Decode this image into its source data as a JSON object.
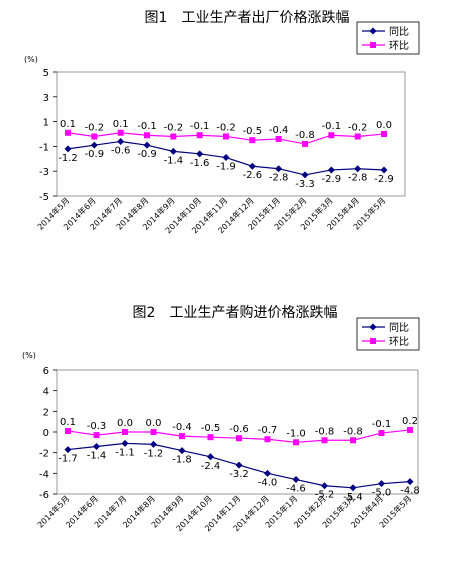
{
  "chart_data": [
    {
      "type": "line",
      "title": "图1　工业生产者出厂价格涨跌幅",
      "unit_label": "(%)",
      "categories": [
        "2014年5月",
        "2014年6月",
        "2014年7月",
        "2014年8月",
        "2014年9月",
        "2014年10月",
        "2014年11月",
        "2014年12月",
        "2015年1月",
        "2015年2月",
        "2015年3月",
        "2015年4月",
        "2015年5月"
      ],
      "ylim": [
        -5,
        5
      ],
      "yticks": [
        5,
        3,
        1,
        -1,
        -3,
        -5
      ],
      "series": [
        {
          "name": "同比",
          "color": "#000080",
          "marker": "diamond",
          "values": [
            -1.2,
            -0.9,
            -0.6,
            -0.9,
            -1.4,
            -1.6,
            -1.9,
            -2.6,
            -2.8,
            -3.3,
            -2.9,
            -2.8,
            -2.9
          ],
          "labels": [
            "-1.2",
            "-0.9",
            "-0.6",
            "-0.9",
            "-1.4",
            "-1.6",
            "-1.9",
            "-2.6",
            "-2.8",
            "-3.3",
            "-2.9",
            "-2.8",
            "-2.9"
          ]
        },
        {
          "name": "环比",
          "color": "#ff00ff",
          "marker": "square",
          "values": [
            0.1,
            -0.2,
            0.1,
            -0.1,
            -0.2,
            -0.1,
            -0.2,
            -0.5,
            -0.4,
            -0.8,
            -0.1,
            -0.2,
            0.0
          ],
          "labels": [
            "0.1",
            "-0.2",
            "0.1",
            "-0.1",
            "-0.2",
            "-0.1",
            "-0.2",
            "-0.5",
            "-0.4",
            "-0.8",
            "-0.1",
            "-0.2",
            "0.0"
          ]
        }
      ],
      "legend": "top-right",
      "grid": false
    },
    {
      "type": "line",
      "title": "图2　工业生产者购进价格涨跌幅",
      "unit_label": "(%)",
      "categories": [
        "2014年5月",
        "2014年6月",
        "2014年7月",
        "2014年8月",
        "2014年9月",
        "2014年10月",
        "2014年11月",
        "2014年12月",
        "2015年1月",
        "2015年2月",
        "2015年3月",
        "2015年4月",
        "2015年5月"
      ],
      "ylim": [
        -6,
        6
      ],
      "yticks": [
        6,
        4,
        2,
        0,
        -2,
        -4,
        -6
      ],
      "series": [
        {
          "name": "同比",
          "color": "#000080",
          "marker": "diamond",
          "values": [
            -1.7,
            -1.4,
            -1.1,
            -1.2,
            -1.8,
            -2.4,
            -3.2,
            -4.0,
            -4.6,
            -5.2,
            -5.4,
            -5.0,
            -4.8
          ],
          "labels": [
            "-1.7",
            "-1.4",
            "-1.1",
            "-1.2",
            "-1.8",
            "-2.4",
            "-3.2",
            "-4.0",
            "-4.6",
            "-5.2",
            "-5.4",
            "-5.0",
            "-4.8"
          ]
        },
        {
          "name": "环比",
          "color": "#ff00ff",
          "marker": "square",
          "values": [
            0.1,
            -0.3,
            0.0,
            0.0,
            -0.4,
            -0.5,
            -0.6,
            -0.7,
            -1.0,
            -0.8,
            -0.8,
            -0.1,
            0.2
          ],
          "labels": [
            "0.1",
            "-0.3",
            "0.0",
            "0.0",
            "-0.4",
            "-0.5",
            "-0.6",
            "-0.7",
            "-1.0",
            "-0.8",
            "-0.8",
            "-0.1",
            "0.2"
          ]
        }
      ],
      "legend": "top-right",
      "grid": false
    }
  ]
}
